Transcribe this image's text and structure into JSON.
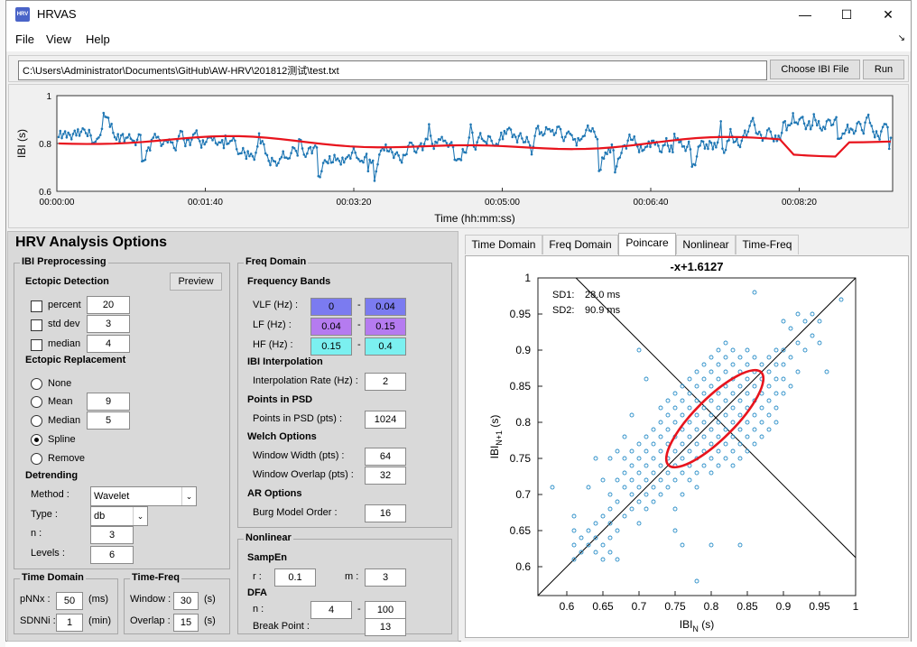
{
  "window": {
    "title": "HRVAS",
    "icon_text": "HRV",
    "icons": {
      "app": "hrv-app-icon",
      "minimize": "minimize-icon",
      "maximize": "maximize-icon",
      "close": "close-icon"
    }
  },
  "menu": [
    "File",
    "View",
    "Help"
  ],
  "file_path": "C:\\Users\\Administrator\\Documents\\GitHub\\AW-HRV\\201812测试\\test.txt",
  "buttons": {
    "choose": "Choose IBI File",
    "run": "Run",
    "preview": "Preview"
  },
  "ibi_plot": {
    "ylabel": "IBI (s)",
    "xlabel": "Time (hh:mm:ss)",
    "yticks": [
      "1",
      "0.8",
      "0.6"
    ],
    "xticks": [
      "00:00:00",
      "00:01:40",
      "00:03:20",
      "00:05:00",
      "00:06:40",
      "00:08:20"
    ],
    "colors": {
      "signal": "#1f77b4",
      "trend": "#e8141d"
    }
  },
  "options": {
    "title": "HRV Analysis Options",
    "ibi_preprocessing": {
      "title": "IBI Preprocessing",
      "ectopic_detection": "Ectopic Detection",
      "percent": {
        "label": "percent",
        "value": "20"
      },
      "std_dev": {
        "label": "std dev",
        "value": "3"
      },
      "median": {
        "label": "median",
        "value": "4"
      },
      "ectopic_replacement": "Ectopic Replacement",
      "none": "None",
      "mean": {
        "label": "Mean",
        "value": "9"
      },
      "median_rep": {
        "label": "Median",
        "value": "5"
      },
      "spline": "Spline",
      "remove": "Remove",
      "detrending": "Detrending",
      "method_label": "Method :",
      "method_value": "Wavelet",
      "type_label": "Type :",
      "type_value": "db",
      "n_label": "n :",
      "n_value": "3",
      "levels_label": "Levels :",
      "levels_value": "6"
    },
    "time_domain": {
      "title": "Time Domain",
      "pnnx_label": "pNNx :",
      "pnnx_value": "50",
      "pnnx_unit": "(ms)",
      "sdnni_label": "SDNNi :",
      "sdnni_value": "1",
      "sdnni_unit": "(min)"
    },
    "time_freq": {
      "title": "Time-Freq",
      "window_label": "Window :",
      "window_value": "30",
      "window_unit": "(s)",
      "overlap_label": "Overlap :",
      "overlap_value": "15",
      "overlap_unit": "(s)"
    },
    "freq_domain": {
      "title": "Freq Domain",
      "bands_title": "Frequency Bands",
      "vlf_label": "VLF (Hz) :",
      "vlf_lo": "0",
      "vlf_hi": "0.04",
      "lf_label": "LF (Hz) :",
      "lf_lo": "0.04",
      "lf_hi": "0.15",
      "hf_label": "HF (Hz) :",
      "hf_lo": "0.15",
      "hf_hi": "0.4",
      "dash": "-",
      "interp_title": "IBI Interpolation",
      "interp_label": "Interpolation Rate (Hz) :",
      "interp_value": "2",
      "psd_title": "Points in PSD",
      "psd_label": "Points in PSD (pts) :",
      "psd_value": "1024",
      "welch_title": "Welch Options",
      "width_label": "Window Width (pts) :",
      "width_value": "64",
      "overlap_label": "Window Overlap (pts) :",
      "overlap_value": "32",
      "ar_title": "AR Options",
      "burg_label": "Burg Model Order :",
      "burg_value": "16",
      "colors": {
        "vlf": "#7b7bf0",
        "lf": "#b57bf0",
        "hf": "#7bf0f0"
      }
    },
    "nonlinear": {
      "title": "Nonlinear",
      "sampen_title": "SampEn",
      "r_label": "r :",
      "r_value": "0.1",
      "m_label": "m :",
      "m_value": "3",
      "dfa_title": "DFA",
      "n_label": "n :",
      "n_lo": "4",
      "dash": "-",
      "n_hi": "100",
      "bp_label": "Break Point :",
      "bp_value": "13"
    }
  },
  "tabs": [
    "Time Domain",
    "Freq Domain",
    "Poincare",
    "Nonlinear",
    "Time-Freq"
  ],
  "active_tab": "Poincare",
  "chart_data": {
    "type": "scatter",
    "title": "-x+1.6127",
    "xlabel": "IBI",
    "xlabel_sub": "N",
    "xlabel_unit": "(s)",
    "ylabel": "IBI",
    "ylabel_sub": "N+1",
    "ylabel_unit": "(s)",
    "xlim": [
      0.56,
      1.0
    ],
    "ylim": [
      0.56,
      1.0
    ],
    "xticks": [
      "0.6",
      "0.65",
      "0.7",
      "0.75",
      "0.8",
      "0.85",
      "0.9",
      "0.95",
      "1"
    ],
    "yticks": [
      "0.6",
      "0.65",
      "0.7",
      "0.75",
      "0.8",
      "0.85",
      "0.9",
      "0.95",
      "1"
    ],
    "sd1_label": "SD1:",
    "sd1_value": "28.0 ms",
    "sd2_label": "SD2:",
    "sd2_value": "90.9 ms",
    "ellipse": {
      "center": [
        0.805,
        0.805
      ],
      "sd1_s": 0.028,
      "sd2_s": 0.0909,
      "angle_deg": 45
    },
    "lines": [
      {
        "name": "identity",
        "slope": 1,
        "intercept": 0
      },
      {
        "name": "perpendicular",
        "slope": -1,
        "intercept": 1.6127
      }
    ],
    "colors": {
      "points": "#2a8ec8",
      "ellipse": "#e8141d",
      "lines": "#000000"
    },
    "points": [
      [
        0.58,
        0.71
      ],
      [
        0.61,
        0.61
      ],
      [
        0.61,
        0.63
      ],
      [
        0.61,
        0.65
      ],
      [
        0.61,
        0.67
      ],
      [
        0.62,
        0.62
      ],
      [
        0.62,
        0.64
      ],
      [
        0.63,
        0.63
      ],
      [
        0.63,
        0.65
      ],
      [
        0.63,
        0.71
      ],
      [
        0.64,
        0.62
      ],
      [
        0.64,
        0.64
      ],
      [
        0.64,
        0.66
      ],
      [
        0.64,
        0.75
      ],
      [
        0.65,
        0.61
      ],
      [
        0.65,
        0.63
      ],
      [
        0.65,
        0.67
      ],
      [
        0.65,
        0.72
      ],
      [
        0.66,
        0.62
      ],
      [
        0.66,
        0.64
      ],
      [
        0.66,
        0.66
      ],
      [
        0.66,
        0.68
      ],
      [
        0.66,
        0.7
      ],
      [
        0.66,
        0.75
      ],
      [
        0.67,
        0.61
      ],
      [
        0.67,
        0.65
      ],
      [
        0.67,
        0.69
      ],
      [
        0.67,
        0.72
      ],
      [
        0.67,
        0.76
      ],
      [
        0.68,
        0.67
      ],
      [
        0.68,
        0.71
      ],
      [
        0.68,
        0.73
      ],
      [
        0.68,
        0.75
      ],
      [
        0.68,
        0.78
      ],
      [
        0.69,
        0.68
      ],
      [
        0.69,
        0.7
      ],
      [
        0.69,
        0.72
      ],
      [
        0.69,
        0.74
      ],
      [
        0.69,
        0.76
      ],
      [
        0.69,
        0.81
      ],
      [
        0.7,
        0.66
      ],
      [
        0.7,
        0.69
      ],
      [
        0.7,
        0.71
      ],
      [
        0.7,
        0.73
      ],
      [
        0.7,
        0.75
      ],
      [
        0.7,
        0.77
      ],
      [
        0.7,
        0.9
      ],
      [
        0.71,
        0.68
      ],
      [
        0.71,
        0.7
      ],
      [
        0.71,
        0.72
      ],
      [
        0.71,
        0.74
      ],
      [
        0.71,
        0.76
      ],
      [
        0.71,
        0.78
      ],
      [
        0.71,
        0.86
      ],
      [
        0.72,
        0.69
      ],
      [
        0.72,
        0.71
      ],
      [
        0.72,
        0.73
      ],
      [
        0.72,
        0.75
      ],
      [
        0.72,
        0.77
      ],
      [
        0.72,
        0.79
      ],
      [
        0.73,
        0.7
      ],
      [
        0.73,
        0.72
      ],
      [
        0.73,
        0.74
      ],
      [
        0.73,
        0.76
      ],
      [
        0.73,
        0.78
      ],
      [
        0.73,
        0.8
      ],
      [
        0.73,
        0.82
      ],
      [
        0.74,
        0.71
      ],
      [
        0.74,
        0.73
      ],
      [
        0.74,
        0.75
      ],
      [
        0.74,
        0.77
      ],
      [
        0.74,
        0.79
      ],
      [
        0.74,
        0.81
      ],
      [
        0.74,
        0.83
      ],
      [
        0.75,
        0.68
      ],
      [
        0.75,
        0.72
      ],
      [
        0.75,
        0.74
      ],
      [
        0.75,
        0.76
      ],
      [
        0.75,
        0.78
      ],
      [
        0.75,
        0.8
      ],
      [
        0.75,
        0.82
      ],
      [
        0.75,
        0.84
      ],
      [
        0.75,
        0.65
      ],
      [
        0.76,
        0.7
      ],
      [
        0.76,
        0.73
      ],
      [
        0.76,
        0.75
      ],
      [
        0.76,
        0.77
      ],
      [
        0.76,
        0.79
      ],
      [
        0.76,
        0.81
      ],
      [
        0.76,
        0.83
      ],
      [
        0.76,
        0.85
      ],
      [
        0.76,
        0.63
      ],
      [
        0.77,
        0.72
      ],
      [
        0.77,
        0.74
      ],
      [
        0.77,
        0.76
      ],
      [
        0.77,
        0.78
      ],
      [
        0.77,
        0.8
      ],
      [
        0.77,
        0.82
      ],
      [
        0.77,
        0.84
      ],
      [
        0.77,
        0.86
      ],
      [
        0.78,
        0.71
      ],
      [
        0.78,
        0.73
      ],
      [
        0.78,
        0.75
      ],
      [
        0.78,
        0.77
      ],
      [
        0.78,
        0.79
      ],
      [
        0.78,
        0.81
      ],
      [
        0.78,
        0.83
      ],
      [
        0.78,
        0.85
      ],
      [
        0.78,
        0.87
      ],
      [
        0.78,
        0.58
      ],
      [
        0.79,
        0.74
      ],
      [
        0.79,
        0.76
      ],
      [
        0.79,
        0.78
      ],
      [
        0.79,
        0.8
      ],
      [
        0.79,
        0.82
      ],
      [
        0.79,
        0.84
      ],
      [
        0.79,
        0.86
      ],
      [
        0.79,
        0.88
      ],
      [
        0.8,
        0.73
      ],
      [
        0.8,
        0.75
      ],
      [
        0.8,
        0.77
      ],
      [
        0.8,
        0.79
      ],
      [
        0.8,
        0.81
      ],
      [
        0.8,
        0.83
      ],
      [
        0.8,
        0.85
      ],
      [
        0.8,
        0.87
      ],
      [
        0.8,
        0.89
      ],
      [
        0.8,
        0.63
      ],
      [
        0.81,
        0.74
      ],
      [
        0.81,
        0.76
      ],
      [
        0.81,
        0.78
      ],
      [
        0.81,
        0.8
      ],
      [
        0.81,
        0.82
      ],
      [
        0.81,
        0.84
      ],
      [
        0.81,
        0.86
      ],
      [
        0.81,
        0.88
      ],
      [
        0.81,
        0.9
      ],
      [
        0.82,
        0.75
      ],
      [
        0.82,
        0.77
      ],
      [
        0.82,
        0.79
      ],
      [
        0.82,
        0.81
      ],
      [
        0.82,
        0.83
      ],
      [
        0.82,
        0.85
      ],
      [
        0.82,
        0.87
      ],
      [
        0.82,
        0.89
      ],
      [
        0.82,
        0.91
      ],
      [
        0.83,
        0.74
      ],
      [
        0.83,
        0.76
      ],
      [
        0.83,
        0.78
      ],
      [
        0.83,
        0.8
      ],
      [
        0.83,
        0.82
      ],
      [
        0.83,
        0.84
      ],
      [
        0.83,
        0.86
      ],
      [
        0.83,
        0.88
      ],
      [
        0.83,
        0.9
      ],
      [
        0.84,
        0.75
      ],
      [
        0.84,
        0.77
      ],
      [
        0.84,
        0.79
      ],
      [
        0.84,
        0.81
      ],
      [
        0.84,
        0.83
      ],
      [
        0.84,
        0.85
      ],
      [
        0.84,
        0.87
      ],
      [
        0.84,
        0.89
      ],
      [
        0.84,
        0.63
      ],
      [
        0.85,
        0.76
      ],
      [
        0.85,
        0.78
      ],
      [
        0.85,
        0.8
      ],
      [
        0.85,
        0.82
      ],
      [
        0.85,
        0.84
      ],
      [
        0.85,
        0.86
      ],
      [
        0.85,
        0.88
      ],
      [
        0.85,
        0.9
      ],
      [
        0.86,
        0.77
      ],
      [
        0.86,
        0.79
      ],
      [
        0.86,
        0.81
      ],
      [
        0.86,
        0.83
      ],
      [
        0.86,
        0.85
      ],
      [
        0.86,
        0.87
      ],
      [
        0.86,
        0.89
      ],
      [
        0.86,
        0.98
      ],
      [
        0.87,
        0.78
      ],
      [
        0.87,
        0.8
      ],
      [
        0.87,
        0.82
      ],
      [
        0.87,
        0.84
      ],
      [
        0.87,
        0.86
      ],
      [
        0.87,
        0.88
      ],
      [
        0.88,
        0.79
      ],
      [
        0.88,
        0.81
      ],
      [
        0.88,
        0.83
      ],
      [
        0.88,
        0.85
      ],
      [
        0.88,
        0.87
      ],
      [
        0.88,
        0.89
      ],
      [
        0.89,
        0.8
      ],
      [
        0.89,
        0.82
      ],
      [
        0.89,
        0.84
      ],
      [
        0.89,
        0.86
      ],
      [
        0.89,
        0.88
      ],
      [
        0.89,
        0.9
      ],
      [
        0.9,
        0.84
      ],
      [
        0.9,
        0.86
      ],
      [
        0.9,
        0.88
      ],
      [
        0.9,
        0.9
      ],
      [
        0.9,
        0.94
      ],
      [
        0.91,
        0.85
      ],
      [
        0.91,
        0.89
      ],
      [
        0.91,
        0.93
      ],
      [
        0.92,
        0.87
      ],
      [
        0.92,
        0.91
      ],
      [
        0.92,
        0.95
      ],
      [
        0.93,
        0.9
      ],
      [
        0.93,
        0.94
      ],
      [
        0.94,
        0.92
      ],
      [
        0.94,
        0.95
      ],
      [
        0.95,
        0.91
      ],
      [
        0.95,
        0.94
      ],
      [
        0.96,
        0.87
      ],
      [
        0.98,
        0.97
      ]
    ]
  }
}
